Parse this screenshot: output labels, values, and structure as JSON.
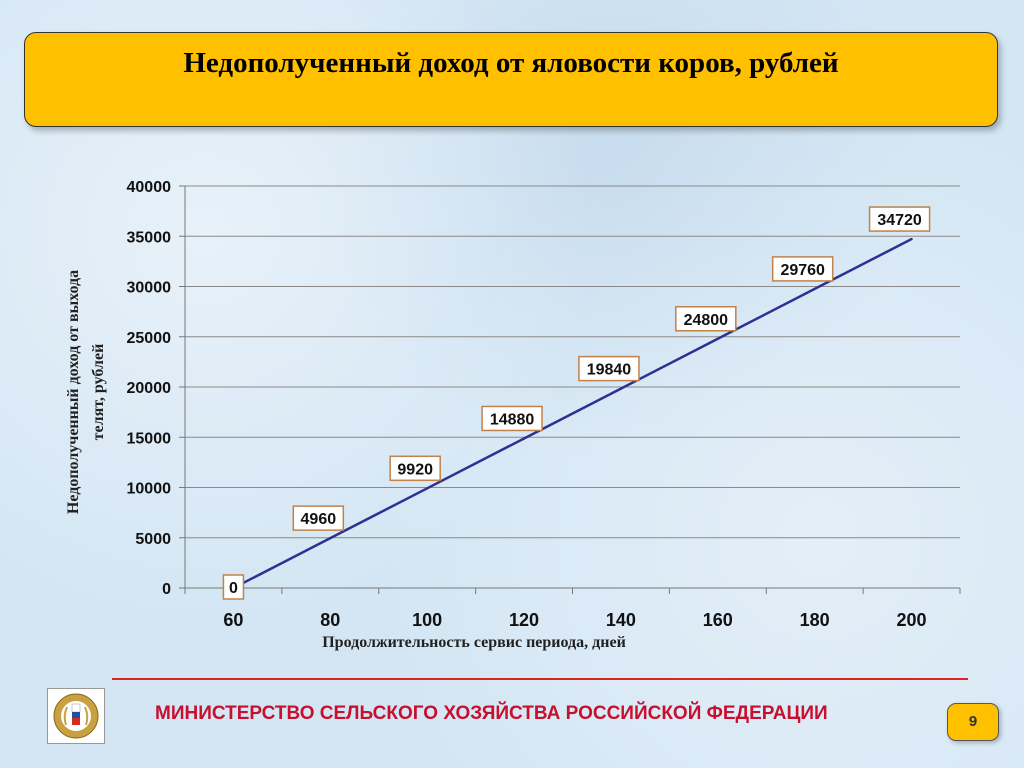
{
  "slide": {
    "title": "Недополученный доход от яловости коров, рублей",
    "footer_text": "МИНИСТЕРСТВО СЕЛЬСКОГО ХОЗЯЙСТВА РОССИЙСКОЙ ФЕДЕРАЦИИ",
    "page_number": "9",
    "logo_icon": "ministry-emblem-icon"
  },
  "chart_data": {
    "type": "line",
    "x": [
      60,
      80,
      100,
      120,
      140,
      160,
      180,
      200
    ],
    "x_tick_labels": [
      "60",
      "80",
      "100",
      "120",
      "140",
      "160",
      "180",
      "200"
    ],
    "points": [
      {
        "x": 60,
        "y": 0,
        "label": "0"
      },
      {
        "x": 80,
        "y": 4960,
        "label": "4960"
      },
      {
        "x": 100,
        "y": 9920,
        "label": "9920"
      },
      {
        "x": 120,
        "y": 14880,
        "label": "14880"
      },
      {
        "x": 140,
        "y": 19840,
        "label": "19840"
      },
      {
        "x": 160,
        "y": 24800,
        "label": "24800"
      },
      {
        "x": 180,
        "y": 29760,
        "label": "29760"
      },
      {
        "x": 200,
        "y": 34720,
        "label": "34720"
      }
    ],
    "y_ticks": [
      0,
      5000,
      10000,
      15000,
      20000,
      25000,
      30000,
      35000,
      40000
    ],
    "ylim": [
      0,
      40000
    ],
    "xlabel": "Продолжительность сервис периода, дней",
    "ylabel_lines": [
      "Недополученный доход от выхода",
      "телят, рублей"
    ],
    "grid": true,
    "line_color": "#2e3192",
    "label_border_color": "#c0824a"
  }
}
